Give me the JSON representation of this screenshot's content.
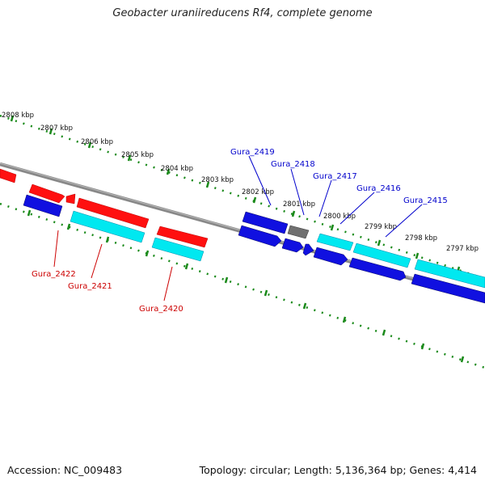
{
  "title": "Geobacter uraniireducens Rf4, complete genome",
  "footer": {
    "accession": "Accession: NC_009483",
    "summary": "Topology: circular; Length: 5,136,364 bp; Genes: 4,414"
  },
  "colors": {
    "red": "#ff1010",
    "cyan": "#00e8f0",
    "blue": "#1010e0",
    "gray": "#707070",
    "tick_green": "#1a8a1a",
    "label_blue": "#0000cc",
    "label_red": "#cc0000"
  },
  "scale_ticks": [
    {
      "label": "2808 kbp"
    },
    {
      "label": "2807 kbp"
    },
    {
      "label": "2806 kbp"
    },
    {
      "label": "2805 kbp"
    },
    {
      "label": "2804 kbp"
    },
    {
      "label": "2803 kbp"
    },
    {
      "label": "2802 kbp"
    },
    {
      "label": "2801 kbp"
    },
    {
      "label": "2800 kbp"
    },
    {
      "label": "2799 kbp"
    },
    {
      "label": "2798 kbp"
    },
    {
      "label": "2797 kbp"
    }
  ],
  "gene_labels_top": [
    {
      "label": "Gura_2419"
    },
    {
      "label": "Gura_2418"
    },
    {
      "label": "Gura_2417"
    },
    {
      "label": "Gura_2416"
    },
    {
      "label": "Gura_2415"
    }
  ],
  "gene_labels_bottom": [
    {
      "label": "Gura_2422"
    },
    {
      "label": "Gura_2421"
    },
    {
      "label": "Gura_2420"
    }
  ]
}
